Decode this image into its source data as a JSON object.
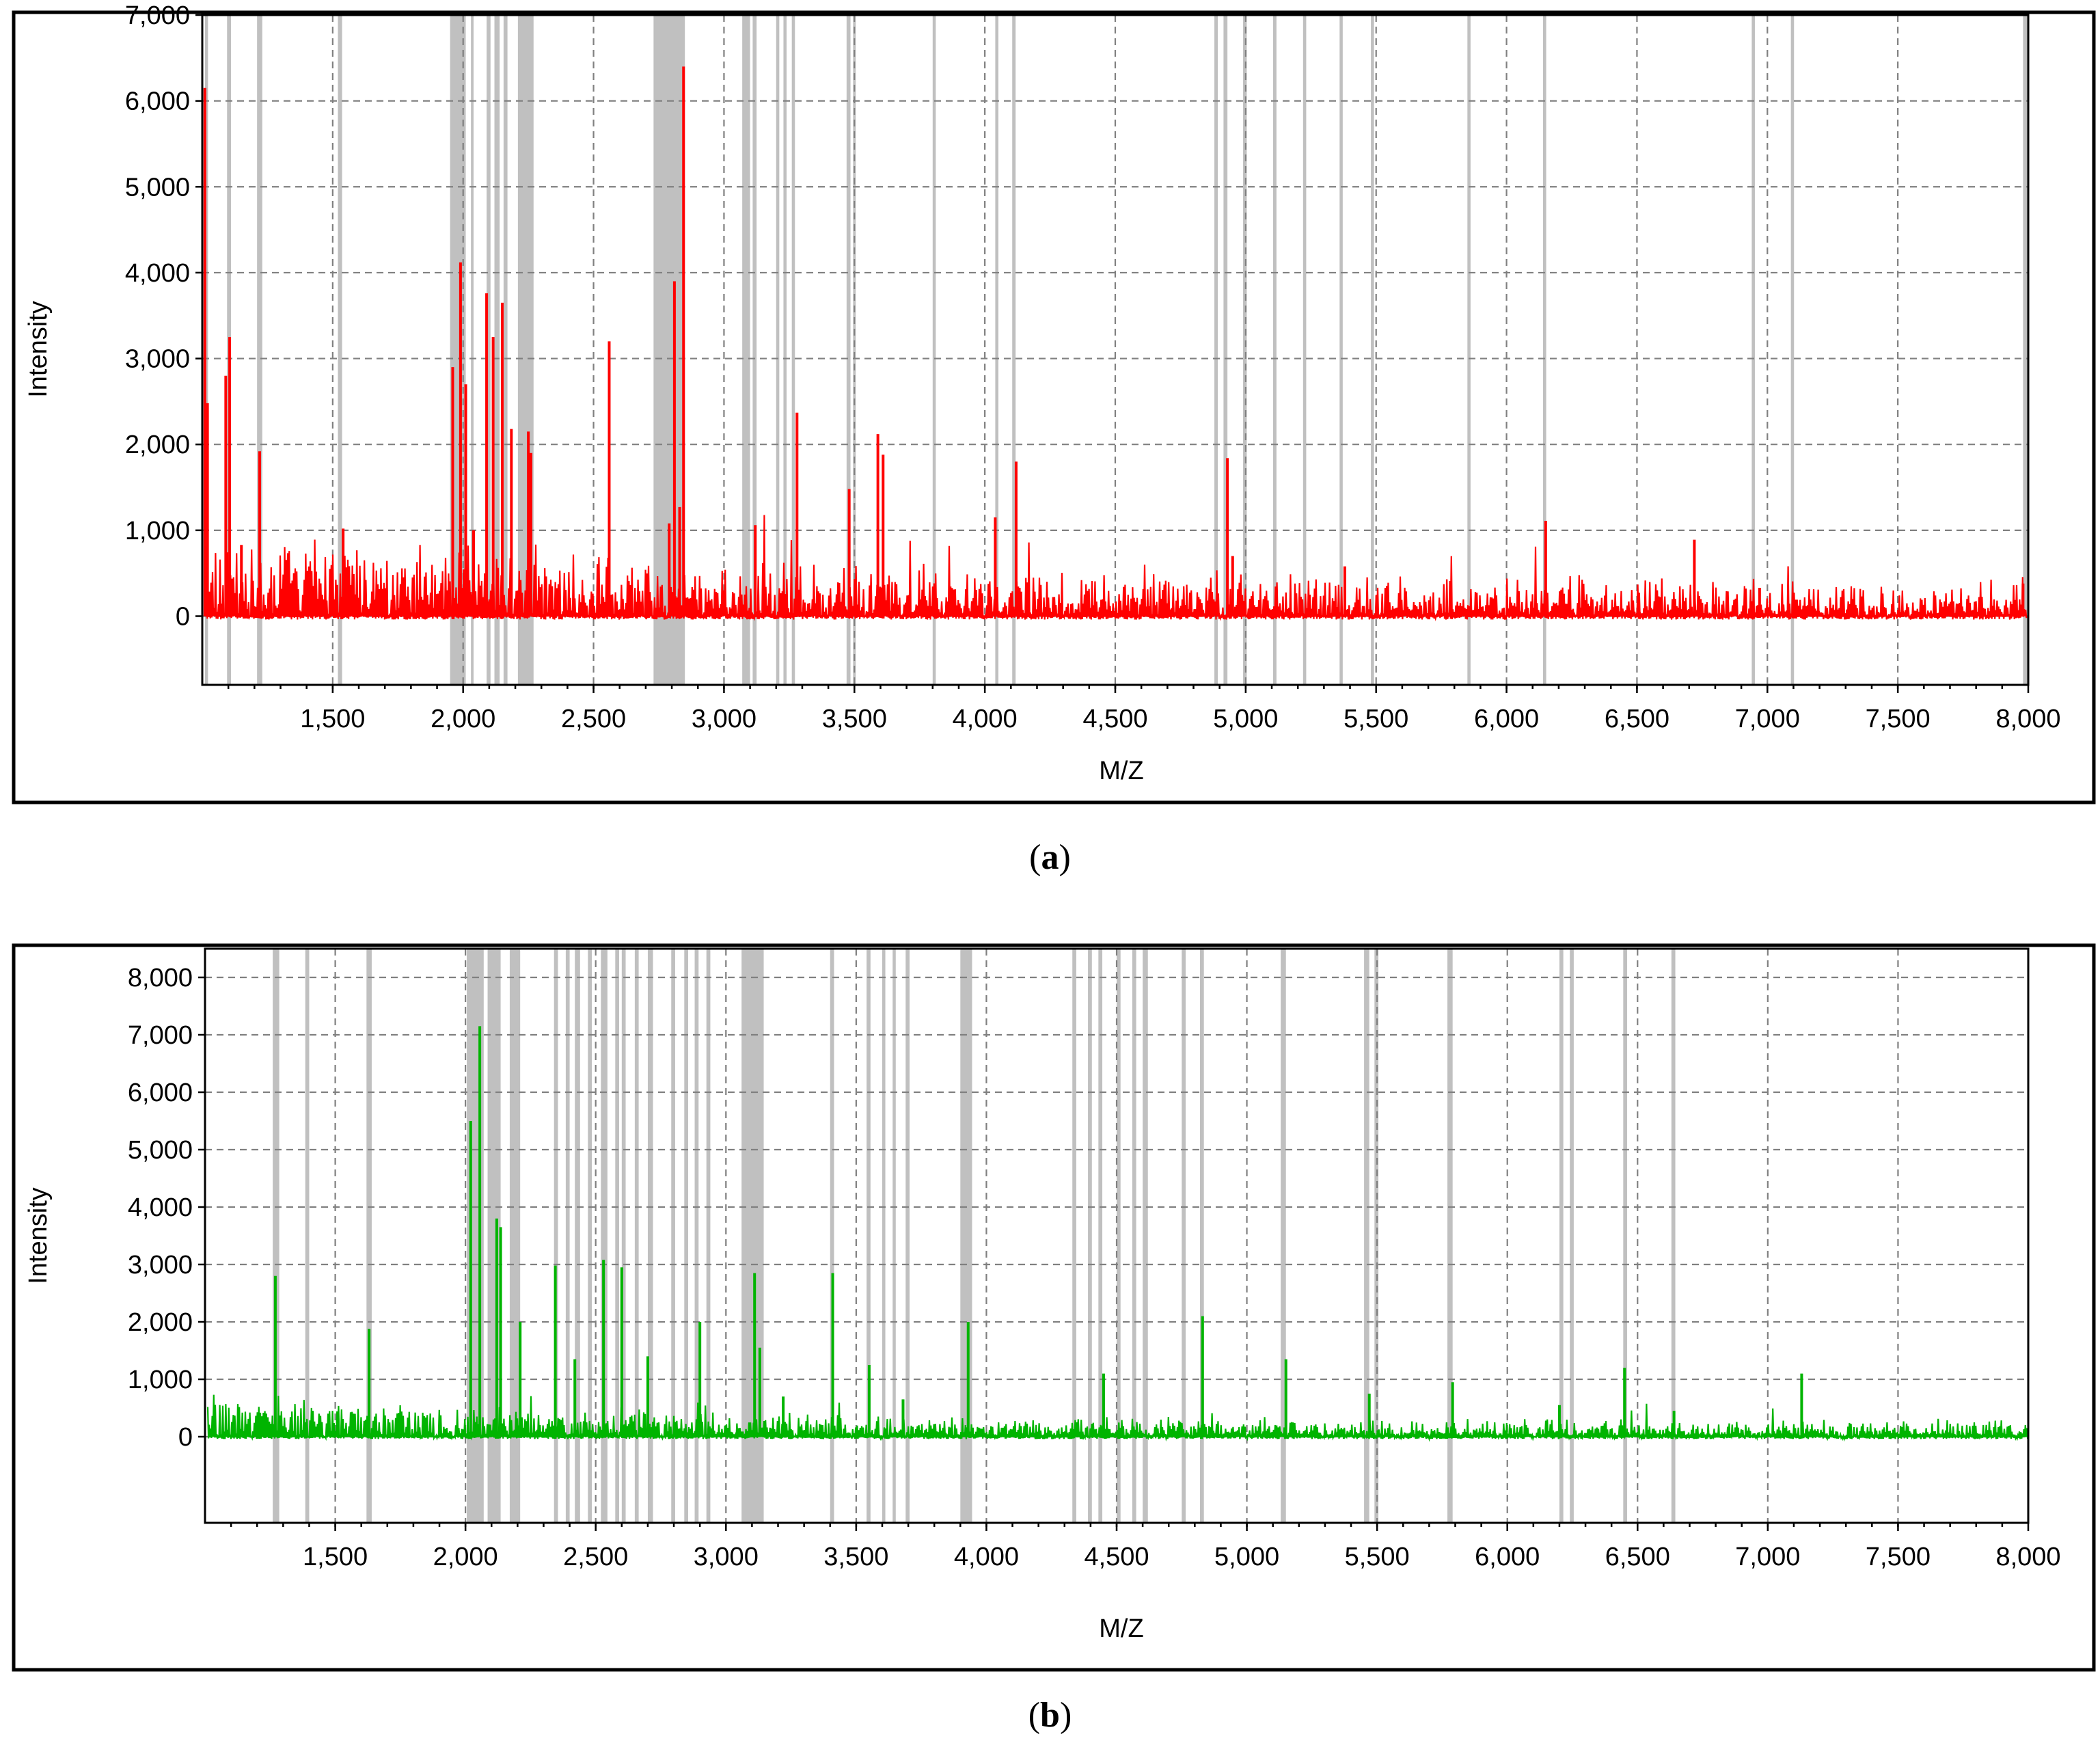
{
  "chart_data": [
    {
      "type": "line",
      "panel_label": "a",
      "xlabel": "M/Z",
      "ylabel": "Intensity",
      "xlim": [
        1000,
        8000
      ],
      "ylim": [
        -800,
        7000
      ],
      "x_ticks": [
        1500,
        2000,
        2500,
        3000,
        3500,
        4000,
        4500,
        5000,
        5500,
        6000,
        6500,
        7000,
        7500,
        8000
      ],
      "x_tick_labels": [
        "1,500",
        "2,000",
        "2,500",
        "3,000",
        "3,500",
        "4,000",
        "4,500",
        "5,000",
        "5,500",
        "6,000",
        "6,500",
        "7,000",
        "7,500",
        "8,000"
      ],
      "y_ticks": [
        0,
        1000,
        2000,
        3000,
        4000,
        5000,
        6000,
        7000
      ],
      "y_tick_labels": [
        "0",
        "1,000",
        "2,000",
        "3,000",
        "4,000",
        "5,000",
        "6,000",
        "7,000"
      ],
      "grid": true,
      "color": "#ff0000",
      "highlight_color": "#c0c0c0",
      "highlight_bands": [
        [
          1010,
          1022
        ],
        [
          1095,
          1110
        ],
        [
          1210,
          1230
        ],
        [
          1520,
          1536
        ],
        [
          1950,
          2010
        ],
        [
          2030,
          2040
        ],
        [
          2090,
          2105
        ],
        [
          2120,
          2140
        ],
        [
          2155,
          2170
        ],
        [
          2210,
          2270
        ],
        [
          2730,
          2850
        ],
        [
          3070,
          3100
        ],
        [
          3110,
          3125
        ],
        [
          3200,
          3212
        ],
        [
          3228,
          3240
        ],
        [
          3260,
          3272
        ],
        [
          3470,
          3485
        ],
        [
          3495,
          3505
        ],
        [
          3800,
          3812
        ],
        [
          4040,
          4052
        ],
        [
          4105,
          4118
        ],
        [
          4880,
          4893
        ],
        [
          4915,
          4930
        ],
        [
          4990,
          5004
        ],
        [
          5105,
          5118
        ],
        [
          5220,
          5232
        ],
        [
          5360,
          5372
        ],
        [
          5480,
          5492
        ],
        [
          5850,
          5862
        ],
        [
          6140,
          6152
        ],
        [
          6940,
          6952
        ],
        [
          7090,
          7102
        ],
        [
          7980,
          7996
        ]
      ],
      "peaks": [
        {
          "x": 1010,
          "y": 6150
        },
        {
          "x": 1020,
          "y": 2480
        },
        {
          "x": 1090,
          "y": 2800
        },
        {
          "x": 1105,
          "y": 3250
        },
        {
          "x": 1150,
          "y": 830
        },
        {
          "x": 1220,
          "y": 1920
        },
        {
          "x": 1540,
          "y": 1020
        },
        {
          "x": 1960,
          "y": 2900
        },
        {
          "x": 1990,
          "y": 4120
        },
        {
          "x": 2010,
          "y": 2700
        },
        {
          "x": 2040,
          "y": 1000
        },
        {
          "x": 2090,
          "y": 3760
        },
        {
          "x": 2115,
          "y": 3250
        },
        {
          "x": 2150,
          "y": 3650
        },
        {
          "x": 2185,
          "y": 2180
        },
        {
          "x": 2250,
          "y": 2150
        },
        {
          "x": 2260,
          "y": 1900
        },
        {
          "x": 2560,
          "y": 3200
        },
        {
          "x": 2790,
          "y": 1080
        },
        {
          "x": 2810,
          "y": 3900
        },
        {
          "x": 2830,
          "y": 1270
        },
        {
          "x": 2845,
          "y": 6400
        },
        {
          "x": 3120,
          "y": 1060
        },
        {
          "x": 3280,
          "y": 2370
        },
        {
          "x": 3480,
          "y": 1480
        },
        {
          "x": 3590,
          "y": 2120
        },
        {
          "x": 3610,
          "y": 1880
        },
        {
          "x": 4040,
          "y": 1150
        },
        {
          "x": 4120,
          "y": 1800
        },
        {
          "x": 4930,
          "y": 1840
        },
        {
          "x": 4950,
          "y": 700
        },
        {
          "x": 5380,
          "y": 580
        },
        {
          "x": 6150,
          "y": 1110
        },
        {
          "x": 6720,
          "y": 890
        },
        {
          "x": 6970,
          "y": 330
        },
        {
          "x": 7980,
          "y": 380
        }
      ]
    },
    {
      "type": "line",
      "panel_label": "b",
      "xlabel": "M/Z",
      "ylabel": "Intensity",
      "xlim": [
        1000,
        8000
      ],
      "ylim": [
        -1500,
        8500
      ],
      "x_ticks": [
        1500,
        2000,
        2500,
        3000,
        3500,
        4000,
        4500,
        5000,
        5500,
        6000,
        6500,
        7000,
        7500,
        8000
      ],
      "x_tick_labels": [
        "1,500",
        "2,000",
        "2,500",
        "3,000",
        "3,500",
        "4,000",
        "4,500",
        "5,000",
        "5,500",
        "6,000",
        "6,500",
        "7,000",
        "7,500",
        "8,000"
      ],
      "y_ticks": [
        0,
        1000,
        2000,
        3000,
        4000,
        5000,
        6000,
        7000,
        8000
      ],
      "y_tick_labels": [
        "0",
        "1,000",
        "2,000",
        "3,000",
        "4,000",
        "5,000",
        "6,000",
        "7,000",
        "8,000"
      ],
      "grid": true,
      "color": "#00b400",
      "highlight_color": "#c0c0c0",
      "highlight_bands": [
        [
          1260,
          1285
        ],
        [
          1385,
          1400
        ],
        [
          1620,
          1640
        ],
        [
          2005,
          2070
        ],
        [
          2085,
          2135
        ],
        [
          2170,
          2210
        ],
        [
          2340,
          2355
        ],
        [
          2385,
          2400
        ],
        [
          2420,
          2440
        ],
        [
          2470,
          2485
        ],
        [
          2520,
          2545
        ],
        [
          2575,
          2590
        ],
        [
          2600,
          2615
        ],
        [
          2650,
          2665
        ],
        [
          2700,
          2720
        ],
        [
          2790,
          2805
        ],
        [
          2840,
          2855
        ],
        [
          2880,
          2895
        ],
        [
          2925,
          2940
        ],
        [
          3060,
          3145
        ],
        [
          3400,
          3415
        ],
        [
          3540,
          3555
        ],
        [
          3600,
          3612
        ],
        [
          3640,
          3652
        ],
        [
          3690,
          3705
        ],
        [
          3900,
          3945
        ],
        [
          4330,
          4345
        ],
        [
          4390,
          4405
        ],
        [
          4430,
          4445
        ],
        [
          4500,
          4515
        ],
        [
          4560,
          4575
        ],
        [
          4600,
          4620
        ],
        [
          4750,
          4765
        ],
        [
          4820,
          4835
        ],
        [
          5130,
          5150
        ],
        [
          5450,
          5470
        ],
        [
          5490,
          5505
        ],
        [
          5770,
          5790
        ],
        [
          6200,
          6215
        ],
        [
          6240,
          6255
        ],
        [
          6445,
          6460
        ],
        [
          6630,
          6645
        ]
      ],
      "peaks": [
        {
          "x": 1270,
          "y": 2800
        },
        {
          "x": 1630,
          "y": 1880
        },
        {
          "x": 2020,
          "y": 5500
        },
        {
          "x": 2055,
          "y": 7150
        },
        {
          "x": 2120,
          "y": 3800
        },
        {
          "x": 2135,
          "y": 3650
        },
        {
          "x": 2210,
          "y": 2000
        },
        {
          "x": 2345,
          "y": 2980
        },
        {
          "x": 2420,
          "y": 1350
        },
        {
          "x": 2530,
          "y": 3080
        },
        {
          "x": 2600,
          "y": 2950
        },
        {
          "x": 2700,
          "y": 1400
        },
        {
          "x": 2900,
          "y": 2000
        },
        {
          "x": 3110,
          "y": 2850
        },
        {
          "x": 3130,
          "y": 1550
        },
        {
          "x": 3220,
          "y": 700
        },
        {
          "x": 3410,
          "y": 2850
        },
        {
          "x": 3550,
          "y": 1250
        },
        {
          "x": 3680,
          "y": 650
        },
        {
          "x": 3930,
          "y": 2000
        },
        {
          "x": 4450,
          "y": 1100
        },
        {
          "x": 4830,
          "y": 2100
        },
        {
          "x": 5150,
          "y": 1350
        },
        {
          "x": 5470,
          "y": 750
        },
        {
          "x": 5790,
          "y": 950
        },
        {
          "x": 6200,
          "y": 550
        },
        {
          "x": 6450,
          "y": 1200
        },
        {
          "x": 6640,
          "y": 450
        },
        {
          "x": 7130,
          "y": 1100
        }
      ]
    }
  ]
}
